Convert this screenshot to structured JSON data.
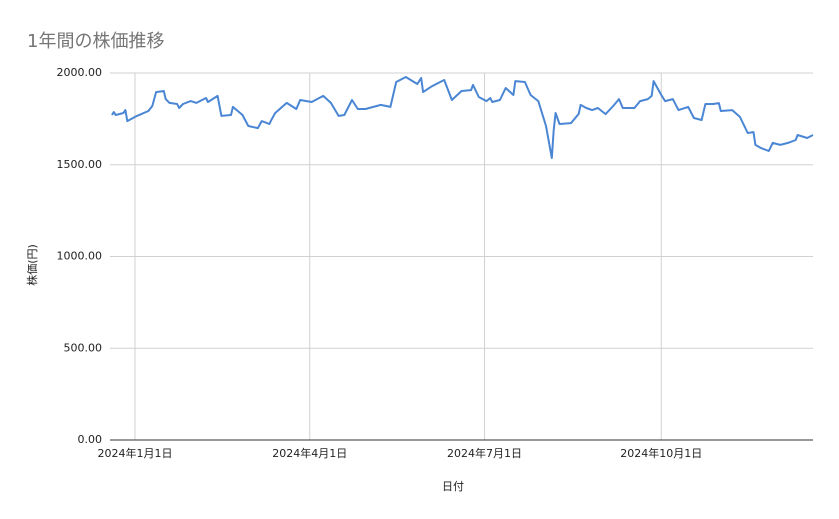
{
  "chart_data": {
    "type": "line",
    "title": "1年間の株価推移",
    "x_label": "日付",
    "y_label": "株価(円)",
    "color": "#4a86d4",
    "grid": true,
    "xlim": [
      "2023-12-19",
      "2024-12-19"
    ],
    "xticks": [
      {
        "value": "2024-01-01",
        "label": "2024年1月1日"
      },
      {
        "value": "2024-04-01",
        "label": "2024年4月1日"
      },
      {
        "value": "2024-07-01",
        "label": "2024年7月1日"
      },
      {
        "value": "2024-10-01",
        "label": "2024年10月1日"
      }
    ],
    "ylim": [
      0,
      2000
    ],
    "yticks": [
      {
        "value": 0,
        "label": "0.00"
      },
      {
        "value": 500,
        "label": "500.00"
      },
      {
        "value": 1000,
        "label": "1000.00"
      },
      {
        "value": 1500,
        "label": "1500.00"
      },
      {
        "value": 2000,
        "label": "2000.00"
      }
    ],
    "x": [
      "2023-12-20",
      "2023-12-21",
      "2023-12-22",
      "2023-12-26",
      "2023-12-27",
      "2023-12-28",
      "2024-01-02",
      "2024-01-08",
      "2024-01-10",
      "2024-01-12",
      "2024-01-16",
      "2024-01-17",
      "2024-01-19",
      "2024-01-23",
      "2024-01-24",
      "2024-01-26",
      "2024-01-30",
      "2024-02-02",
      "2024-02-07",
      "2024-02-08",
      "2024-02-13",
      "2024-02-15",
      "2024-02-20",
      "2024-02-21",
      "2024-02-26",
      "2024-02-29",
      "2024-03-05",
      "2024-03-07",
      "2024-03-11",
      "2024-03-12",
      "2024-03-14",
      "2024-03-20",
      "2024-03-25",
      "2024-03-27",
      "2024-04-02",
      "2024-04-08",
      "2024-04-12",
      "2024-04-16",
      "2024-04-19",
      "2024-04-23",
      "2024-04-26",
      "2024-04-30",
      "2024-05-08",
      "2024-05-13",
      "2024-05-16",
      "2024-05-21",
      "2024-05-27",
      "2024-05-29",
      "2024-05-30",
      "2024-06-03",
      "2024-06-07",
      "2024-06-10",
      "2024-06-14",
      "2024-06-19",
      "2024-06-24",
      "2024-06-25",
      "2024-06-28",
      "2024-07-02",
      "2024-07-04",
      "2024-07-05",
      "2024-07-09",
      "2024-07-12",
      "2024-07-16",
      "2024-07-17",
      "2024-07-22",
      "2024-07-25",
      "2024-07-29",
      "2024-08-02",
      "2024-08-05",
      "2024-08-06",
      "2024-08-07",
      "2024-08-09",
      "2024-08-15",
      "2024-08-19",
      "2024-08-20",
      "2024-08-23",
      "2024-08-26",
      "2024-08-29",
      "2024-09-02",
      "2024-09-06",
      "2024-09-09",
      "2024-09-11",
      "2024-09-17",
      "2024-09-20",
      "2024-09-24",
      "2024-09-26",
      "2024-09-27",
      "2024-10-01",
      "2024-10-03",
      "2024-10-07",
      "2024-10-10",
      "2024-10-15",
      "2024-10-18",
      "2024-10-22",
      "2024-10-24",
      "2024-10-28",
      "2024-10-31",
      "2024-11-01",
      "2024-11-07",
      "2024-11-11",
      "2024-11-14",
      "2024-11-15",
      "2024-11-18",
      "2024-11-19",
      "2024-11-22",
      "2024-11-26",
      "2024-11-28",
      "2024-12-02",
      "2024-12-06",
      "2024-12-10",
      "2024-12-11",
      "2024-12-16",
      "2024-12-19"
    ],
    "values": [
      1771,
      1787,
      1771,
      1782,
      1798,
      1738,
      1766,
      1793,
      1820,
      1896,
      1902,
      1858,
      1837,
      1831,
      1809,
      1831,
      1847,
      1837,
      1864,
      1842,
      1875,
      1766,
      1771,
      1815,
      1771,
      1711,
      1700,
      1738,
      1722,
      1744,
      1782,
      1837,
      1804,
      1853,
      1842,
      1875,
      1837,
      1766,
      1771,
      1853,
      1804,
      1804,
      1826,
      1815,
      1951,
      1978,
      1940,
      1973,
      1896,
      1924,
      1946,
      1962,
      1853,
      1902,
      1907,
      1935,
      1869,
      1847,
      1864,
      1842,
      1853,
      1918,
      1880,
      1956,
      1951,
      1880,
      1847,
      1711,
      1537,
      1689,
      1782,
      1722,
      1727,
      1777,
      1826,
      1809,
      1798,
      1809,
      1776,
      1820,
      1858,
      1809,
      1809,
      1847,
      1858,
      1875,
      1956,
      1880,
      1847,
      1858,
      1798,
      1815,
      1755,
      1744,
      1831,
      1831,
      1836,
      1793,
      1798,
      1760,
      1695,
      1673,
      1678,
      1608,
      1591,
      1575,
      1619,
      1608,
      1619,
      1635,
      1662,
      1646,
      1662
    ]
  }
}
